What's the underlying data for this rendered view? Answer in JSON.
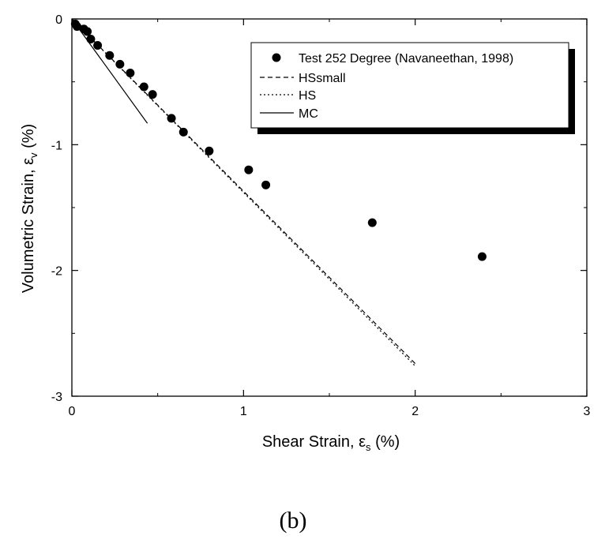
{
  "caption": "(b)",
  "chart_data": {
    "type": "scatter",
    "xlabel_main": "Shear Strain, ε",
    "xlabel_sub": "s",
    "xlabel_unit": " (%)",
    "ylabel_main": "Volumetric Strain, ε",
    "ylabel_sub": "v",
    "ylabel_unit": " (%)",
    "xlim": [
      0,
      3
    ],
    "ylim": [
      -3,
      0
    ],
    "x_ticks": [
      0,
      1,
      2,
      3
    ],
    "x_tick_labels": [
      "0",
      "1",
      "2",
      "3"
    ],
    "y_ticks": [
      0,
      -1,
      -2,
      -3
    ],
    "y_tick_labels": [
      "0",
      "-1",
      "-2",
      "-3"
    ],
    "grid": false,
    "legend_position": "top-right",
    "series": [
      {
        "name": "Test 252 Degree (Navaneethan, 1998)",
        "kind": "markers",
        "color": "#000000",
        "x": [
          0.02,
          0.03,
          0.07,
          0.09,
          0.11,
          0.15,
          0.22,
          0.28,
          0.34,
          0.42,
          0.47,
          0.58,
          0.65,
          0.8,
          1.03,
          1.13,
          1.75,
          2.39
        ],
        "y": [
          -0.04,
          -0.06,
          -0.08,
          -0.1,
          -0.16,
          -0.21,
          -0.29,
          -0.36,
          -0.43,
          -0.54,
          -0.6,
          -0.79,
          -0.9,
          -1.05,
          -1.2,
          -1.32,
          -1.62,
          -1.89
        ]
      },
      {
        "name": "HSsmall",
        "kind": "line",
        "dash": "dashed",
        "color": "#000000",
        "x": [
          0,
          2.0
        ],
        "y": [
          0,
          -2.74
        ]
      },
      {
        "name": "HS",
        "kind": "line",
        "dash": "dotted",
        "color": "#000000",
        "x": [
          0,
          2.0
        ],
        "y": [
          0,
          -2.76
        ]
      },
      {
        "name": "MC",
        "kind": "line",
        "dash": "solid",
        "color": "#000000",
        "x": [
          0,
          0.44
        ],
        "y": [
          0,
          -0.83
        ]
      }
    ]
  }
}
